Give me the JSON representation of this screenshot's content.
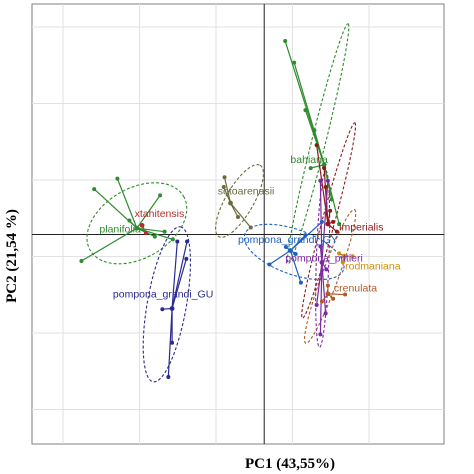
{
  "chart_data": {
    "type": "scatter",
    "xlabel": "PC1 (43,55%)",
    "ylabel": "PC2 (21,54 %)",
    "xlim": [
      -3.1,
      2.4
    ],
    "ylim": [
      -3.0,
      3.3
    ],
    "grid": true,
    "origin_lines": true,
    "groups": [
      {
        "name": "xtahitensis",
        "color": "#b03030",
        "centroid": [
          -1.63,
          0.13
        ],
        "points": [
          [
            -1.63,
            0.13
          ],
          [
            -1.58,
            0.02
          ]
        ],
        "ellipse": null,
        "label_pos": [
          -1.73,
          0.25
        ]
      },
      {
        "name": "planifolia",
        "color": "#2e8b2e",
        "centroid": [
          -1.7,
          0.09
        ],
        "points": [
          [
            -1.96,
            0.8
          ],
          [
            -2.27,
            0.65
          ],
          [
            -2.44,
            -0.38
          ],
          [
            -1.39,
            0.56
          ],
          [
            -1.46,
            -0.03
          ],
          [
            -1.8,
            0.2
          ],
          [
            -1.22,
            -0.07
          ],
          [
            -1.33,
            0.04
          ]
        ],
        "ellipse": {
          "cx": -1.7,
          "cy": 0.16,
          "rx": 0.72,
          "ry": 0.5,
          "angle": -30
        },
        "label_pos": [
          -2.2,
          0.03
        ]
      },
      {
        "name": "sotoarenasii",
        "color": "#6b6b3a",
        "centroid": [
          -0.45,
          0.45
        ],
        "points": [
          [
            -0.53,
            0.82
          ],
          [
            -0.18,
            0.1
          ],
          [
            -0.54,
            0.68
          ],
          [
            -0.35,
            0.25
          ]
        ],
        "ellipse": {
          "cx": -0.33,
          "cy": 0.48,
          "rx": 0.55,
          "ry": 0.2,
          "angle": -60
        },
        "label_pos": [
          -0.62,
          0.57
        ]
      },
      {
        "name": "pompona_grandi_GU",
        "color": "#2a2a90",
        "centroid": [
          -1.23,
          -1.06
        ],
        "points": [
          [
            -1.28,
            -2.04
          ],
          [
            -1.23,
            -1.55
          ],
          [
            -1.03,
            -0.1
          ],
          [
            -1.04,
            -0.35
          ],
          [
            -1.36,
            -1.07
          ],
          [
            -1.16,
            -0.1
          ]
        ],
        "ellipse": {
          "cx": -1.3,
          "cy": -1.0,
          "rx": 1.05,
          "ry": 0.28,
          "angle": -80
        },
        "label_pos": [
          -2.02,
          -0.9
        ]
      },
      {
        "name": "pompona_grandi_GY",
        "color": "#2060c0",
        "centroid": [
          0.35,
          -0.23
        ],
        "points": [
          [
            0.07,
            -0.43
          ],
          [
            0.49,
            -0.69
          ],
          [
            0.55,
            -0.01
          ],
          [
            0.77,
            0.18
          ],
          [
            0.29,
            -0.18
          ],
          [
            0.42,
            -0.28
          ]
        ],
        "ellipse": {
          "cx": 0.4,
          "cy": -0.25,
          "rx": 0.7,
          "ry": 0.32,
          "angle": 20
        },
        "label_pos": [
          -0.35,
          -0.12
        ]
      },
      {
        "name": "bahiana",
        "color": "#2e8b2e",
        "centroid": [
          0.8,
          1.0
        ],
        "points": [
          [
            0.28,
            2.77
          ],
          [
            0.4,
            2.46
          ],
          [
            0.55,
            1.78
          ],
          [
            0.67,
            1.49
          ],
          [
            0.8,
            0.96
          ],
          [
            0.9,
            0.5
          ],
          [
            1.0,
            0.15
          ],
          [
            0.62,
            0.95
          ]
        ],
        "ellipse": {
          "cx": 0.72,
          "cy": 1.3,
          "rx": 1.65,
          "ry": 0.1,
          "angle": -76
        },
        "label_pos": [
          0.35,
          1.02
        ]
      },
      {
        "name": "imperialis",
        "color": "#8b1a1a",
        "centroid": [
          0.85,
          0.15
        ],
        "points": [
          [
            0.7,
            1.28
          ],
          [
            0.82,
            0.68
          ],
          [
            0.88,
            0.34
          ],
          [
            0.97,
            0.04
          ],
          [
            0.8,
            0.95
          ],
          [
            0.92,
            0.18
          ]
        ],
        "ellipse": {
          "cx": 0.86,
          "cy": 0.2,
          "rx": 1.35,
          "ry": 0.09,
          "angle": -75
        },
        "label_pos": [
          1.0,
          0.06
        ]
      },
      {
        "name": "pompona_pittieri",
        "color": "#7a2aa0",
        "centroid": [
          0.77,
          -0.4
        ],
        "points": [
          [
            0.75,
            0.77
          ],
          [
            0.85,
            0.77
          ],
          [
            0.75,
            -0.17
          ],
          [
            0.83,
            -0.5
          ],
          [
            0.75,
            -1.43
          ],
          [
            0.7,
            -1.01
          ],
          [
            0.82,
            -1.13
          ]
        ],
        "ellipse": {
          "cx": 0.78,
          "cy": -0.35,
          "rx": 1.18,
          "ry": 0.09,
          "angle": -88
        },
        "label_pos": [
          0.28,
          -0.39
        ]
      },
      {
        "name": "rodmaniana",
        "color": "#d0900a",
        "centroid": [
          1.07,
          -0.31
        ],
        "points": [
          [
            1.05,
            -0.4
          ],
          [
            1.18,
            -0.31
          ],
          [
            1.0,
            -0.27
          ]
        ],
        "ellipse": null,
        "label_pos": [
          1.08,
          -0.5
        ]
      },
      {
        "name": "crenulata",
        "color": "#b05a2a",
        "centroid": [
          0.85,
          -0.85
        ],
        "points": [
          [
            0.77,
            -0.96
          ],
          [
            1.08,
            -0.86
          ],
          [
            0.85,
            -0.73
          ],
          [
            0.92,
            -0.92
          ]
        ],
        "ellipse": {
          "cx": 0.88,
          "cy": -0.6,
          "rx": 0.95,
          "ry": 0.12,
          "angle": -70
        },
        "label_pos": [
          0.93,
          -0.82
        ]
      }
    ]
  }
}
